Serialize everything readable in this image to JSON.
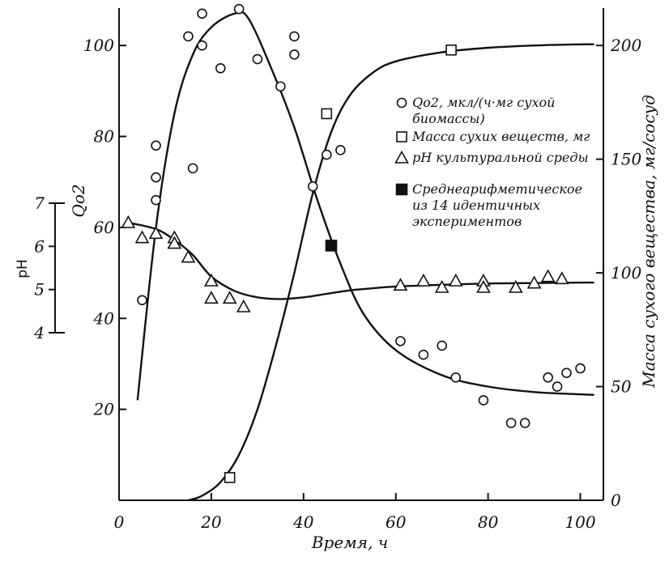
{
  "chart_data": {
    "type": "scatter",
    "x_axis": {
      "label": "Время, ч",
      "ticks": [
        0,
        20,
        40,
        60,
        80,
        100
      ],
      "range": [
        0,
        105
      ]
    },
    "y_left_qo2": {
      "label": "Qo2",
      "ticks": [
        20,
        40,
        60,
        80,
        100
      ],
      "range": [
        0,
        110
      ]
    },
    "y_left_ph": {
      "label": "pH",
      "ticks": [
        4,
        5,
        6,
        7
      ],
      "range": [
        4,
        7
      ]
    },
    "y_right_mass": {
      "label": "Масса сухого вещества, мг/сосуд",
      "ticks": [
        0,
        50,
        100,
        150,
        200
      ],
      "range": [
        0,
        220
      ]
    },
    "legend": [
      {
        "marker": "circle",
        "text": [
          "Qo2, мкл/(ч·мг сухой",
          "биомассы)"
        ]
      },
      {
        "marker": "square",
        "text": [
          "Масса сухих веществ, мг"
        ]
      },
      {
        "marker": "triangle",
        "text": [
          "pH культуральной среды"
        ]
      },
      {
        "marker": "filled-square",
        "text": [
          "Среднеарифметическое",
          "из 14 идентичных",
          "экспериментов"
        ]
      }
    ],
    "series": [
      {
        "name": "Qo2, мкл/(ч·мг сухой биомассы)",
        "marker": "circle",
        "axis": "qo2",
        "points": [
          [
            5,
            44
          ],
          [
            8,
            78
          ],
          [
            8,
            71
          ],
          [
            8,
            66
          ],
          [
            15,
            102
          ],
          [
            16,
            73
          ],
          [
            18,
            107
          ],
          [
            18,
            100
          ],
          [
            22,
            95
          ],
          [
            26,
            108
          ],
          [
            30,
            97
          ],
          [
            35,
            91
          ],
          [
            38,
            102
          ],
          [
            38,
            98
          ],
          [
            42,
            69
          ],
          [
            45,
            76
          ],
          [
            48,
            77
          ],
          [
            61,
            35
          ],
          [
            66,
            32
          ],
          [
            70,
            34
          ],
          [
            73,
            27
          ],
          [
            79,
            22
          ],
          [
            85,
            17
          ],
          [
            88,
            17
          ],
          [
            93,
            27
          ],
          [
            95,
            25
          ],
          [
            97,
            28
          ],
          [
            100,
            29
          ]
        ]
      },
      {
        "name": "Масса сухих веществ, мг",
        "marker": "square",
        "axis": "mass",
        "points": [
          [
            24,
            10
          ],
          [
            45,
            170
          ],
          [
            72,
            198
          ]
        ]
      },
      {
        "name": "pH культуральной среды",
        "marker": "triangle",
        "axis": "ph",
        "points": [
          [
            2,
            6.55
          ],
          [
            5,
            6.2
          ],
          [
            8,
            6.3
          ],
          [
            12,
            6.2
          ],
          [
            12,
            6.07
          ],
          [
            15,
            5.75
          ],
          [
            20,
            5.2
          ],
          [
            20,
            4.8
          ],
          [
            24,
            4.8
          ],
          [
            27,
            4.6
          ],
          [
            61,
            5.1
          ],
          [
            66,
            5.2
          ],
          [
            70,
            5.05
          ],
          [
            73,
            5.2
          ],
          [
            79,
            5.2
          ],
          [
            79,
            5.05
          ],
          [
            86,
            5.05
          ],
          [
            90,
            5.15
          ],
          [
            93,
            5.3
          ],
          [
            96,
            5.25
          ]
        ]
      },
      {
        "name": "Среднеарифметическое из 14 идентичных экспериментов",
        "marker": "filled-square",
        "axis": "mass",
        "points": [
          [
            46,
            112
          ]
        ]
      }
    ],
    "curves": [
      {
        "axis": "qo2",
        "points": [
          [
            4,
            22
          ],
          [
            8,
            60
          ],
          [
            12,
            85
          ],
          [
            16,
            98
          ],
          [
            20,
            104
          ],
          [
            25,
            107
          ],
          [
            28,
            106
          ],
          [
            33,
            95
          ],
          [
            38,
            82
          ],
          [
            43,
            66
          ],
          [
            48,
            52
          ],
          [
            53,
            41
          ],
          [
            60,
            33
          ],
          [
            70,
            27.5
          ],
          [
            80,
            25
          ],
          [
            90,
            23.8
          ],
          [
            100,
            23.3
          ],
          [
            103,
            23.2
          ]
        ]
      },
      {
        "axis": "mass",
        "points": [
          [
            15,
            0
          ],
          [
            18,
            2
          ],
          [
            22,
            8
          ],
          [
            26,
            20
          ],
          [
            30,
            40
          ],
          [
            34,
            68
          ],
          [
            38,
            100
          ],
          [
            42,
            135
          ],
          [
            46,
            162
          ],
          [
            50,
            178
          ],
          [
            55,
            188
          ],
          [
            60,
            193
          ],
          [
            70,
            197
          ],
          [
            80,
            199
          ],
          [
            90,
            200
          ],
          [
            100,
            200.5
          ],
          [
            103,
            200.5
          ]
        ]
      },
      {
        "axis": "ph",
        "points": [
          [
            2,
            6.55
          ],
          [
            8,
            6.4
          ],
          [
            12,
            6.15
          ],
          [
            16,
            5.8
          ],
          [
            20,
            5.3
          ],
          [
            25,
            4.97
          ],
          [
            30,
            4.82
          ],
          [
            35,
            4.78
          ],
          [
            40,
            4.82
          ],
          [
            45,
            4.9
          ],
          [
            50,
            4.98
          ],
          [
            55,
            5.03
          ],
          [
            60,
            5.07
          ],
          [
            70,
            5.11
          ],
          [
            80,
            5.14
          ],
          [
            90,
            5.15
          ],
          [
            100,
            5.16
          ],
          [
            103,
            5.16
          ]
        ]
      }
    ]
  }
}
